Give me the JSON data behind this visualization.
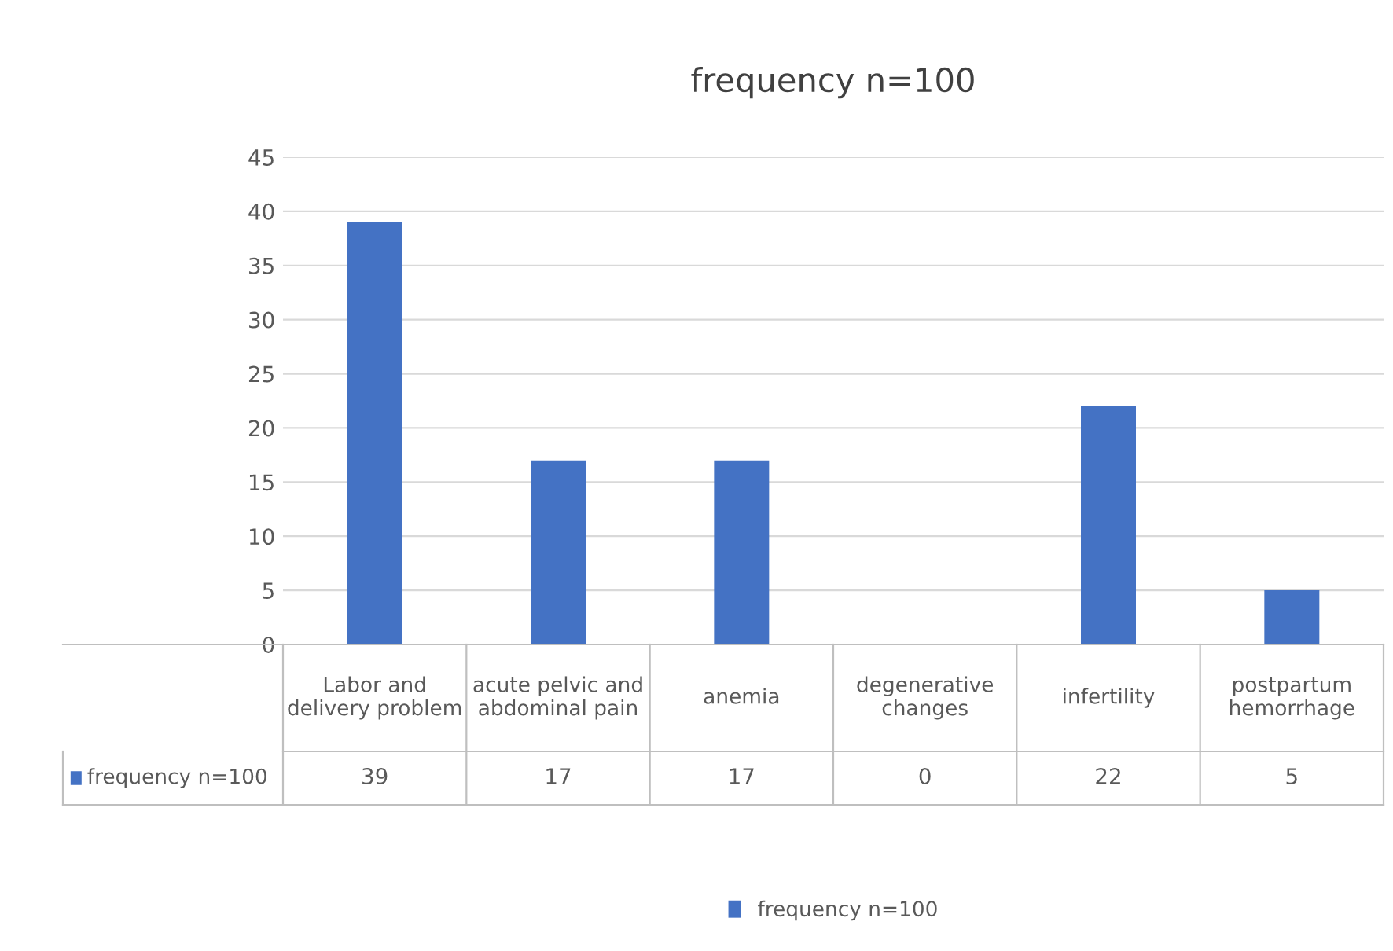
{
  "chart_data": {
    "type": "bar",
    "title": "frequency n=100",
    "categories": [
      "Labor and delivery problem",
      "acute pelvic and abdominal pain",
      "anemia",
      "degenerative changes",
      "infertility",
      "postpartum hemorrhage"
    ],
    "series": [
      {
        "name": "frequency n=100",
        "color": "#4472c4",
        "values": [
          39,
          17,
          17,
          0,
          22,
          5
        ]
      }
    ],
    "ylim": [
      0,
      45
    ],
    "yticks": [
      0,
      5,
      10,
      15,
      20,
      25,
      30,
      35,
      40,
      45
    ],
    "grid": "y",
    "legend": "bottom",
    "data_labels": true
  }
}
